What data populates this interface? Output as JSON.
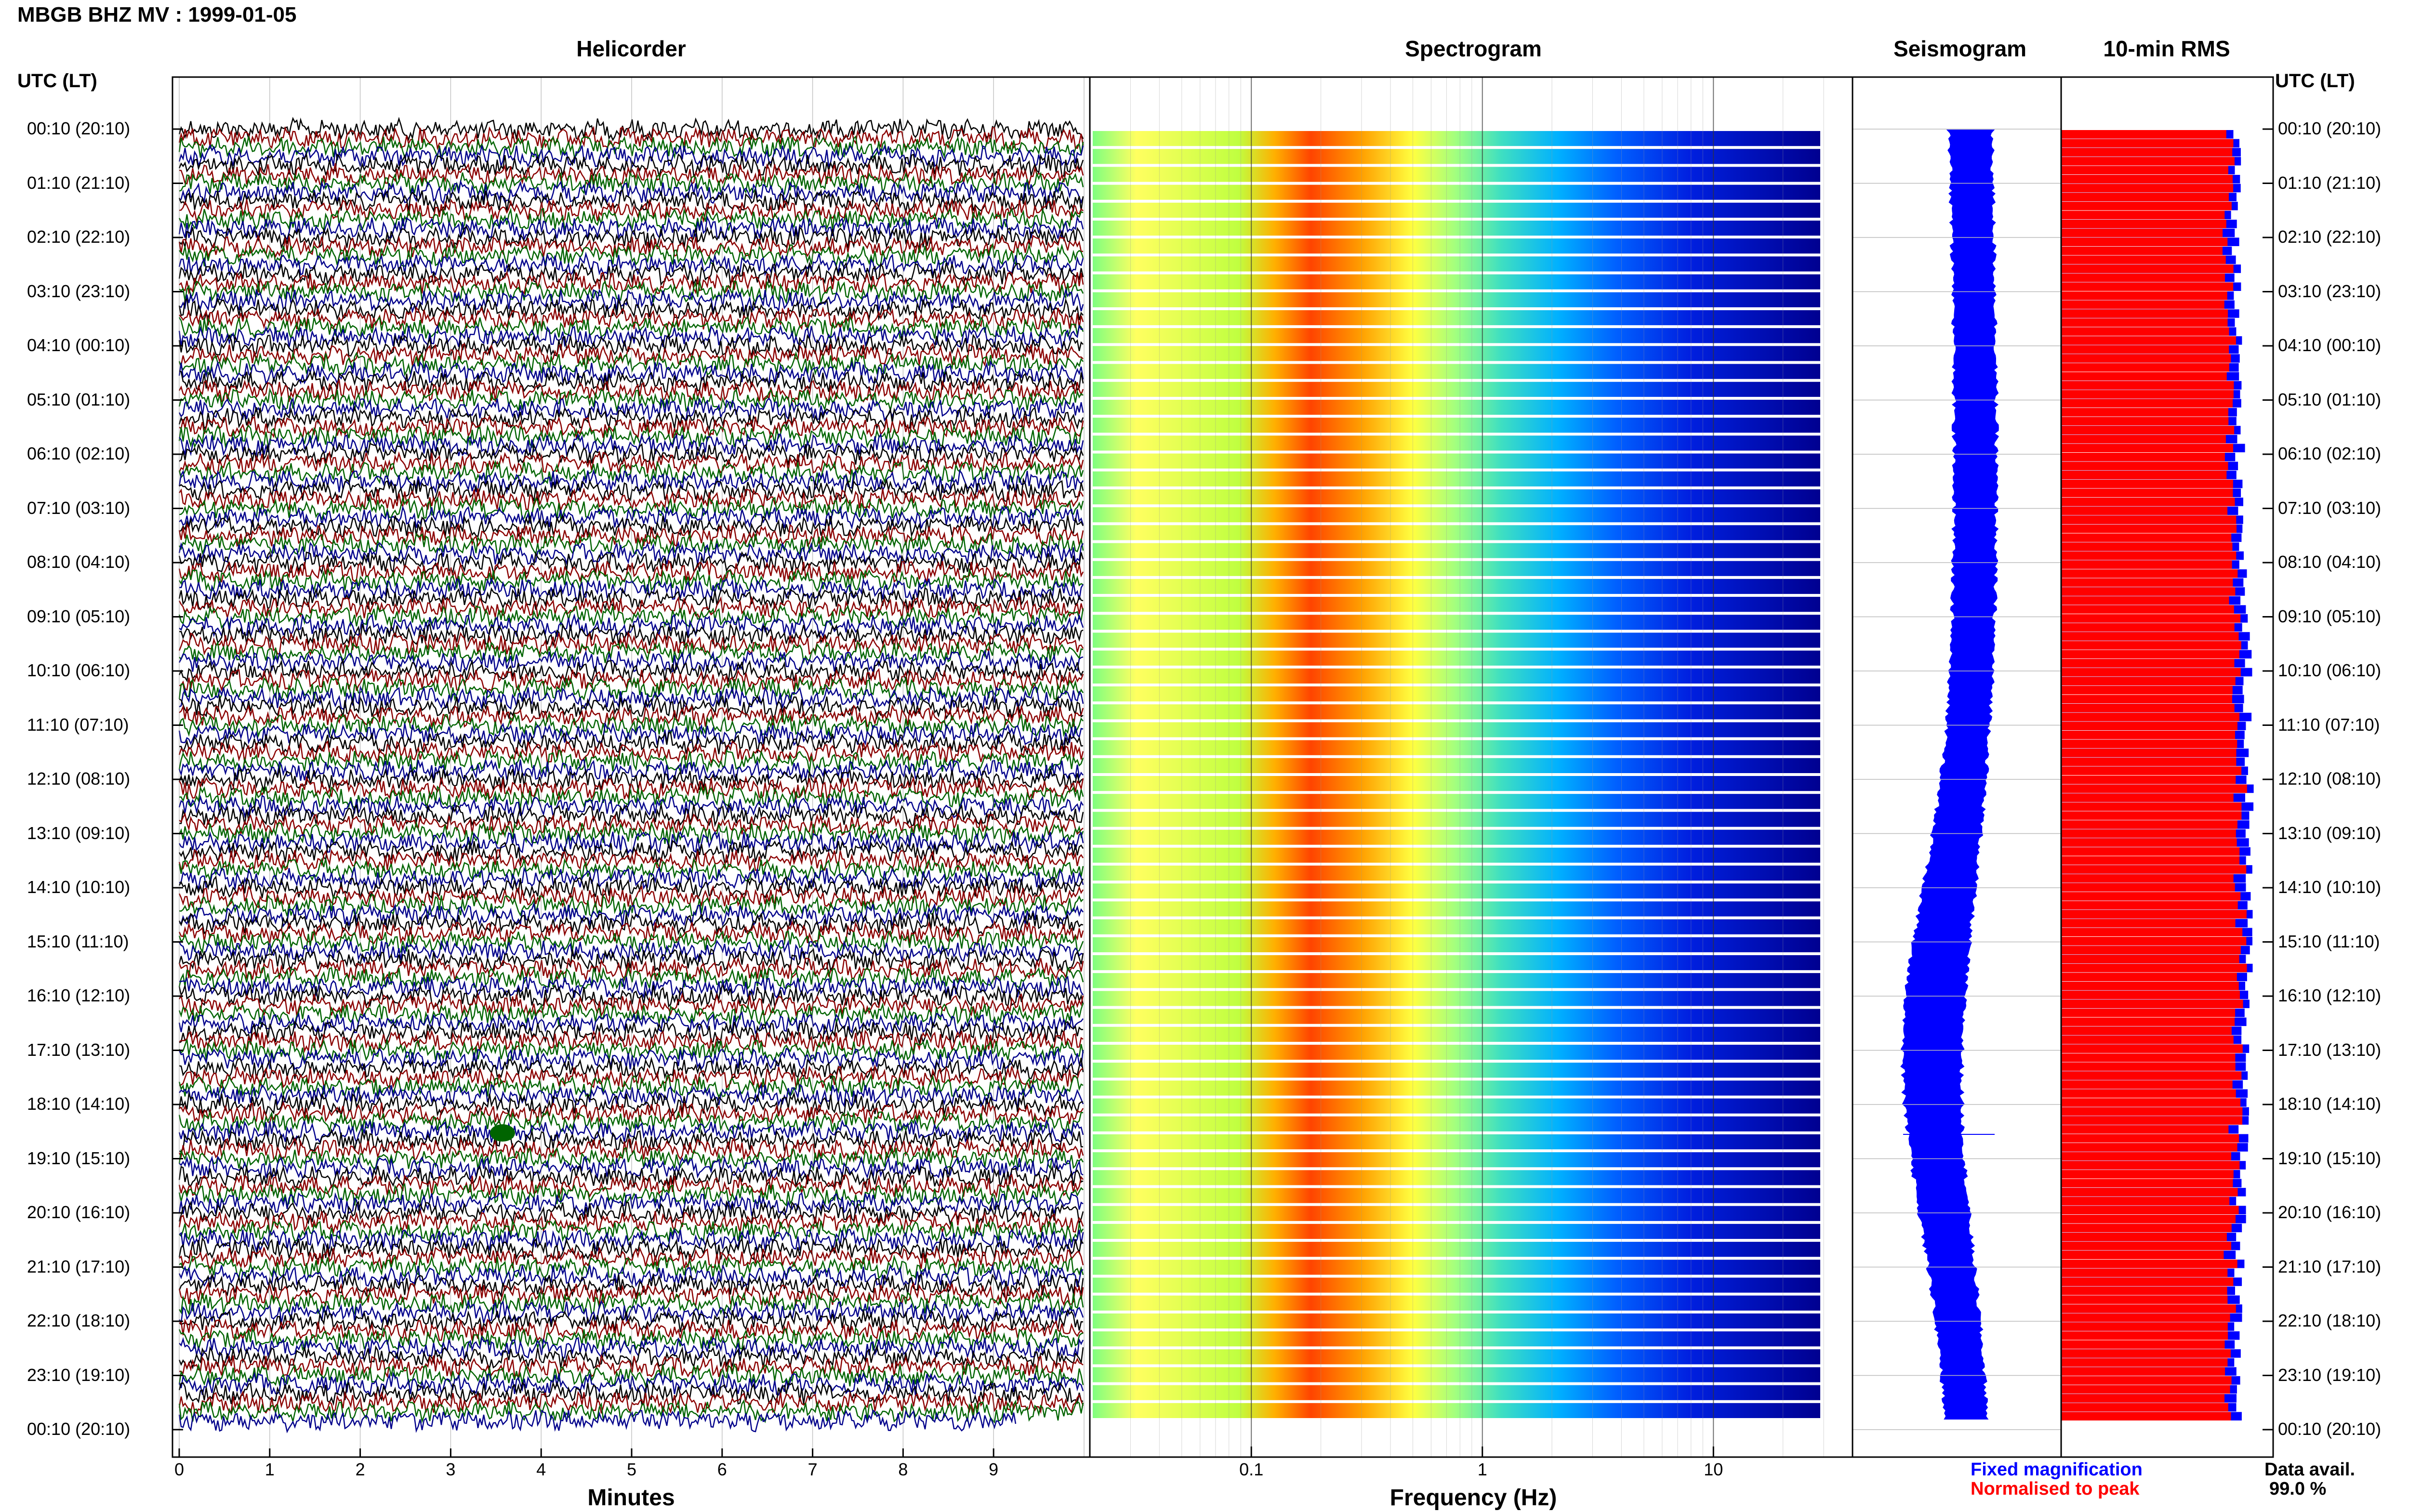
{
  "title": "MBGB BHZ MV : 1999-01-05",
  "panels": {
    "helicorder": "Helicorder",
    "spectrogram": "Spectrogram",
    "seismogram": "Seismogram",
    "rms": "10-min RMS"
  },
  "utc_header_left": "UTC (LT)",
  "utc_header_right": "UTC (LT)",
  "time_labels": [
    "00:10 (20:10)",
    "01:10 (21:10)",
    "02:10 (22:10)",
    "03:10 (23:10)",
    "04:10 (00:10)",
    "05:10 (01:10)",
    "06:10 (02:10)",
    "07:10 (03:10)",
    "08:10 (04:10)",
    "09:10 (05:10)",
    "10:10 (06:10)",
    "11:10 (07:10)",
    "12:10 (08:10)",
    "13:10 (09:10)",
    "14:10 (10:10)",
    "15:10 (11:10)",
    "16:10 (12:10)",
    "17:10 (13:10)",
    "18:10 (14:10)",
    "19:10 (15:10)",
    "20:10 (16:10)",
    "21:10 (17:10)",
    "22:10 (18:10)",
    "23:10 (19:10)",
    "00:10 (20:10)"
  ],
  "legend": {
    "fixed": "Fixed magnification",
    "normalised": "Normalised to peak",
    "data_avail_label": "Data avail.",
    "data_avail_value": "99.0 %"
  },
  "colors": {
    "fixed": "#0000ff",
    "normalised": "#ff0000",
    "trace_cycle": [
      "#000000",
      "#8b0000",
      "#006400",
      "#00008b"
    ]
  },
  "chart_data": [
    {
      "type": "line",
      "name": "helicorder",
      "xlabel": "Minutes",
      "x_ticks": [
        "0",
        "1",
        "2",
        "3",
        "4",
        "5",
        "6",
        "7",
        "8",
        "9"
      ],
      "xlim": [
        0,
        10
      ],
      "rows_per_hour": 6,
      "hours": 24
    },
    {
      "type": "heatmap",
      "name": "spectrogram",
      "xlabel": "Frequency (Hz)",
      "x_scale": "log",
      "xlim": [
        0.02,
        40
      ],
      "x_ticks": [
        "0.1",
        "1",
        "10"
      ],
      "peak_band_hz": [
        0.18,
        0.45
      ]
    },
    {
      "type": "line",
      "name": "seismogram",
      "note_shape": "amplitude envelope widening toward 17:10–18:10"
    },
    {
      "type": "bar",
      "name": "10-min RMS",
      "series": [
        {
          "name": "Fixed magnification",
          "color": "#0000ff"
        },
        {
          "name": "Normalised to peak",
          "color": "#ff0000"
        }
      ]
    }
  ]
}
